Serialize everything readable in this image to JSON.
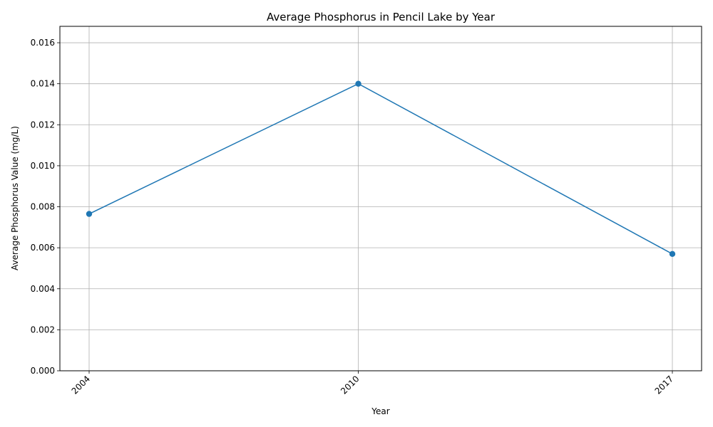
{
  "chart_data": {
    "type": "line",
    "title": "Average Phosphorus in Pencil Lake by Year",
    "xlabel": "Year",
    "ylabel": "Average Phosphorus Value (mg/L)",
    "x": [
      "2004",
      "2010",
      "2017"
    ],
    "series": [
      {
        "values": [
          0.00765,
          0.014,
          0.0057
        ],
        "color": "#1f77b4",
        "marker": "circle"
      }
    ],
    "ylim": [
      0,
      0.0168
    ],
    "yticks": [
      0.0,
      0.002,
      0.004,
      0.006,
      0.008,
      0.01,
      0.012,
      0.014,
      0.016
    ],
    "ytick_labels": [
      "0.000",
      "0.002",
      "0.004",
      "0.006",
      "0.008",
      "0.010",
      "0.012",
      "0.014",
      "0.016"
    ],
    "grid": true,
    "xtick_rotation_deg": 45
  }
}
